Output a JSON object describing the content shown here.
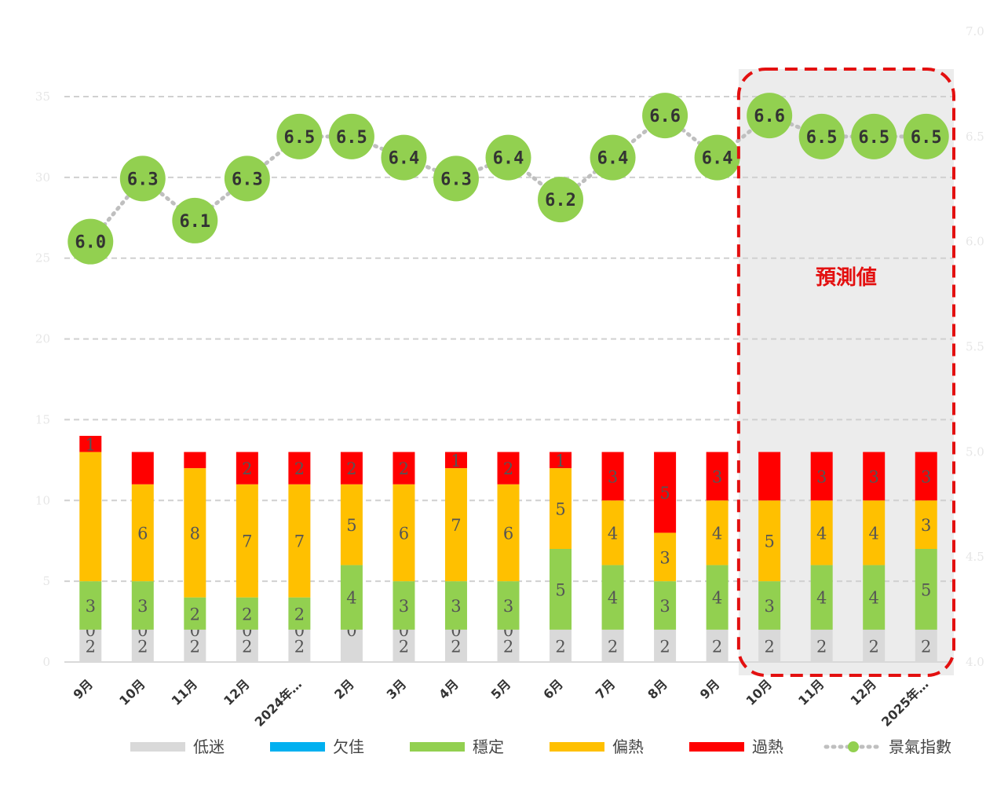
{
  "chart_data": {
    "type": "bar+line",
    "categories": [
      "9月",
      "10月",
      "11月",
      "12月",
      "2024年…",
      "2月",
      "3月",
      "4月",
      "5月",
      "6月",
      "7月",
      "8月",
      "9月",
      "10月",
      "11月",
      "12月",
      "2025年…"
    ],
    "left_axis": {
      "min": 0,
      "max": 35,
      "ticks": [
        "0",
        "5",
        "10",
        "15",
        "20",
        "25",
        "30",
        "35"
      ]
    },
    "right_axis": {
      "min": 4.0,
      "max": 7.0,
      "ticks": [
        "4.0",
        "4.5",
        "5.0",
        "5.5",
        "6.0",
        "6.5",
        "7.0"
      ]
    },
    "series": [
      {
        "name": "低迷",
        "color": "#d9d9d9",
        "values": [
          2,
          2,
          2,
          2,
          2,
          2,
          2,
          2,
          2,
          2,
          2,
          2,
          2,
          2,
          2,
          2,
          2
        ],
        "labels": [
          "2",
          "2",
          "2",
          "2",
          "2",
          "",
          "2",
          "2",
          "2",
          "2",
          "2",
          "2",
          "2",
          "2",
          "2",
          "2",
          "2"
        ]
      },
      {
        "name": "欠佳",
        "color": "#00b0f0",
        "values": [
          0,
          0,
          0,
          0,
          0,
          0,
          0,
          0,
          0,
          0,
          0,
          0,
          0,
          0,
          0,
          0,
          0
        ],
        "labels": [
          "0",
          "0",
          "0",
          "0",
          "0",
          "0",
          "0",
          "0",
          "0",
          "",
          "",
          "",
          "",
          "",
          "",
          "",
          ""
        ]
      },
      {
        "name": "穩定",
        "color": "#92d050",
        "values": [
          3,
          3,
          2,
          2,
          2,
          4,
          3,
          3,
          3,
          5,
          4,
          3,
          4,
          3,
          4,
          4,
          5
        ],
        "labels": [
          "3",
          "3",
          "2",
          "2",
          "2",
          "4",
          "3",
          "3",
          "3",
          "5",
          "4",
          "3",
          "4",
          "3",
          "4",
          "4",
          "5"
        ]
      },
      {
        "name": "偏熱",
        "color": "#ffc000",
        "values": [
          8,
          6,
          8,
          7,
          7,
          5,
          6,
          7,
          6,
          5,
          4,
          3,
          4,
          5,
          4,
          4,
          3
        ],
        "labels": [
          "",
          "6",
          "8",
          "7",
          "7",
          "5",
          "6",
          "7",
          "6",
          "5",
          "4",
          "3",
          "4",
          "5",
          "4",
          "4",
          "3"
        ]
      },
      {
        "name": "過熱",
        "color": "#ff0000",
        "values": [
          1,
          2,
          1,
          2,
          2,
          2,
          2,
          1,
          2,
          1,
          3,
          5,
          3,
          3,
          3,
          3,
          3
        ],
        "labels": [
          "1",
          "",
          "",
          "2",
          "2",
          "2",
          "2",
          "1",
          "2",
          "1",
          "3",
          "5",
          "3",
          "",
          "3",
          "3",
          "3"
        ]
      },
      {
        "name": "景氣指數",
        "color": "#92d050",
        "axis": "right",
        "values": [
          6.0,
          6.3,
          6.1,
          6.3,
          6.5,
          6.5,
          6.4,
          6.3,
          6.4,
          6.2,
          6.4,
          6.6,
          6.4,
          6.6,
          6.5,
          6.5,
          6.5
        ],
        "labels": [
          "6.0",
          "6.3",
          "6.1",
          "6.3",
          "6.5",
          "6.5",
          "6.4",
          "6.3",
          "6.4",
          "6.2",
          "6.4",
          "6.6",
          "6.4",
          "6.6",
          "6.5",
          "6.5",
          "6.5"
        ]
      }
    ],
    "forecast": {
      "label": "預測値",
      "start_index": 13,
      "end_index": 16
    },
    "grid": true,
    "legend": "bottom"
  }
}
